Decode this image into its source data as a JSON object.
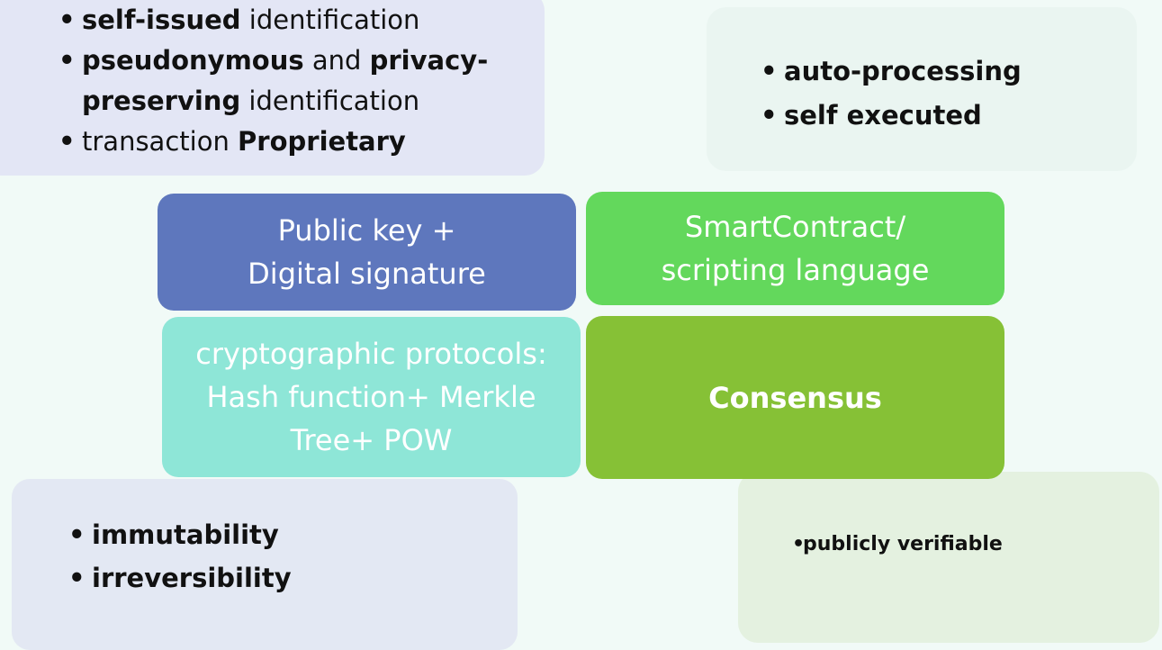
{
  "notes": {
    "top_left": [
      {
        "parts": [
          {
            "text": "self-issued",
            "bold": true
          },
          {
            "text": " identification",
            "bold": false
          }
        ]
      },
      {
        "parts": [
          {
            "text": "pseudonymous",
            "bold": true
          },
          {
            "text": " and ",
            "bold": false
          },
          {
            "text": "privacy-preserving",
            "bold": true
          },
          {
            "text": " identification",
            "bold": false
          }
        ]
      },
      {
        "parts": [
          {
            "text": "transaction ",
            "bold": false
          },
          {
            "text": "Proprietary",
            "bold": true
          }
        ]
      }
    ],
    "top_right": [
      "auto-processing",
      "self executed"
    ],
    "bottom_left": [
      "immutability",
      "irreversibility"
    ],
    "bottom_right": [
      "publicly verifiable"
    ]
  },
  "quadrants": {
    "public_key": "Public key + Digital signature",
    "smart_contract": "SmartContract/ scripting language",
    "crypto": "cryptographic protocols: Hash function+ Merkle Tree+ POW",
    "consensus": "Consensus"
  },
  "colors": {
    "public_key": "#5e77bd",
    "smart_contract": "#63d85c",
    "crypto": "#8ee6d7",
    "consensus": "#86c136"
  }
}
